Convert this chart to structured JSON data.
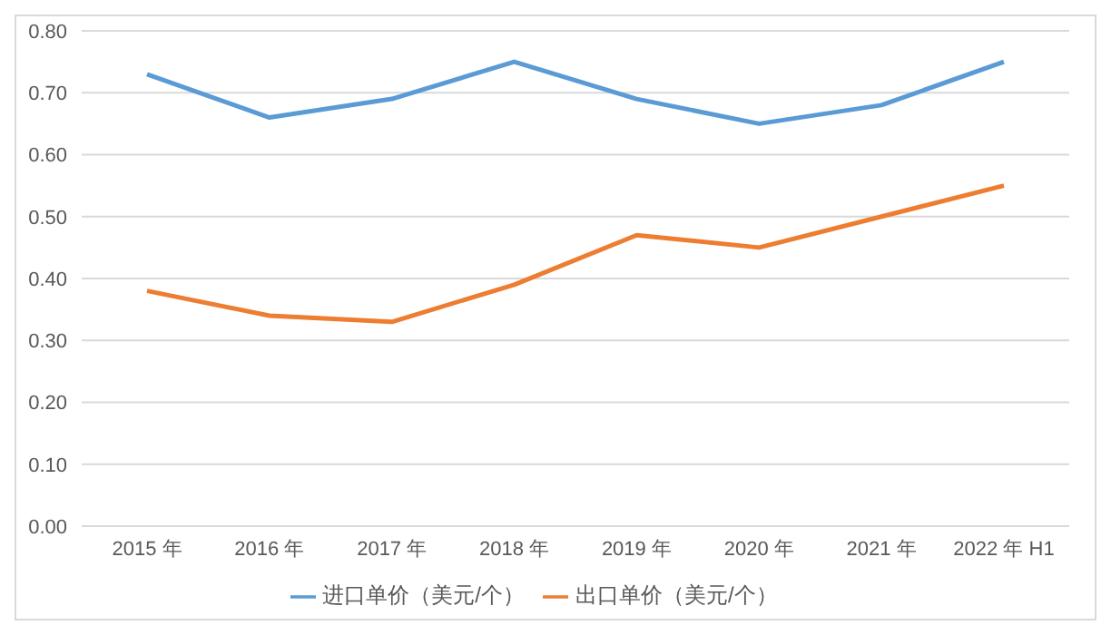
{
  "chart_data": {
    "type": "line",
    "categories": [
      "2015 年",
      "2016 年",
      "2017 年",
      "2018 年",
      "2019 年",
      "2020 年",
      "2021 年",
      "2022 年 H1"
    ],
    "series": [
      {
        "name": "进口单价（美元/个）",
        "color": "#5b9bd5",
        "values": [
          0.73,
          0.66,
          0.69,
          0.75,
          0.69,
          0.65,
          0.68,
          0.75
        ]
      },
      {
        "name": "出口单价（美元/个）",
        "color": "#ed7d31",
        "values": [
          0.38,
          0.34,
          0.33,
          0.39,
          0.47,
          0.45,
          0.5,
          0.55
        ]
      }
    ],
    "ylim": [
      0,
      0.8
    ],
    "yticks": [
      {
        "value": 0,
        "label": "0.00"
      },
      {
        "value": 0.1,
        "label": "0.10"
      },
      {
        "value": 0.2,
        "label": "0.20"
      },
      {
        "value": 0.3,
        "label": "0.30"
      },
      {
        "value": 0.4,
        "label": "0.40"
      },
      {
        "value": 0.5,
        "label": "0.50"
      },
      {
        "value": 0.6,
        "label": "0.60"
      },
      {
        "value": 0.7,
        "label": "0.70"
      },
      {
        "value": 0.8,
        "label": "0.80"
      }
    ],
    "grid": "y",
    "legend": "bottom",
    "marker": "none",
    "line_style": "solid"
  }
}
